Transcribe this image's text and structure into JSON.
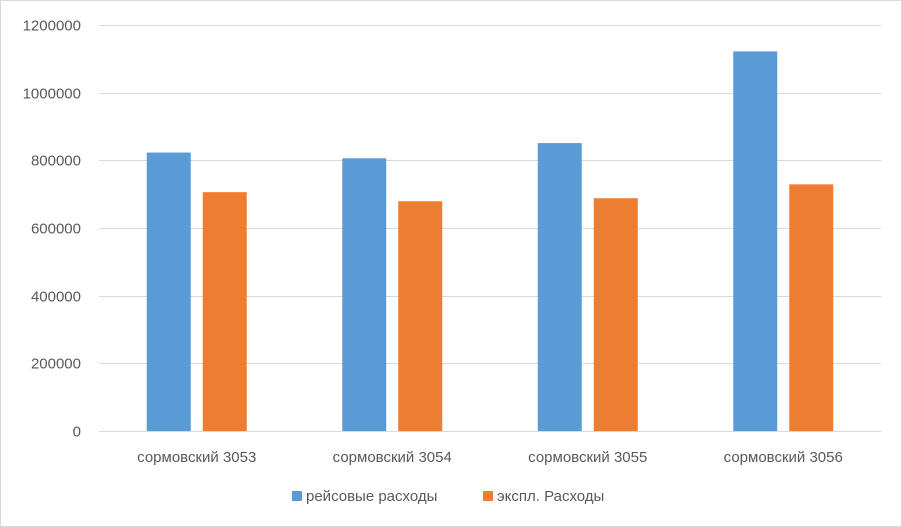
{
  "chart_data": {
    "type": "bar",
    "categories": [
      "сормовский 3053",
      "сормовский 3054",
      "сормовский 3055",
      "сормовский 3056"
    ],
    "series": [
      {
        "name": "рейсовые расходы",
        "color": "#5b9bd5",
        "values": [
          823000,
          806000,
          851000,
          1122000
        ]
      },
      {
        "name": "экспл. Расходы",
        "color": "#ed7d31",
        "values": [
          706000,
          679000,
          688000,
          729000
        ]
      }
    ],
    "ylim": [
      0,
      1200000
    ],
    "yticks": [
      0,
      200000,
      400000,
      600000,
      800000,
      1000000,
      1200000
    ],
    "ytick_labels": [
      "0",
      "200000",
      "400000",
      "600000",
      "800000",
      "1000000",
      "1200000"
    ],
    "grid": true,
    "legend_position": "bottom",
    "gridline_color": "#d9d9d9",
    "text_color": "#595959"
  }
}
